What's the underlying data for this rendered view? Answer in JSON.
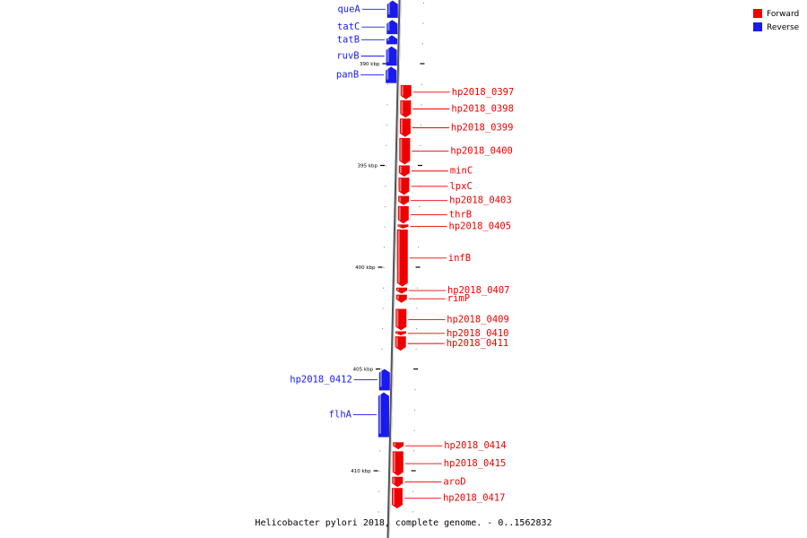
{
  "title": "Helicobacter pylori 2018, complete genome. - 0..1562832",
  "colors": {
    "forward": "#ee0000",
    "reverse": "#1a1aee",
    "axis": "#888888"
  },
  "legend": [
    {
      "label": "Forward",
      "color": "#ee0000"
    },
    {
      "label": "Reverse",
      "color": "#1a1aee"
    }
  ],
  "ticks": [
    {
      "kbp": 390,
      "label": "390 kbp"
    },
    {
      "kbp": 395,
      "label": "395 kbp"
    },
    {
      "kbp": 400,
      "label": "400 kbp"
    },
    {
      "kbp": 405,
      "label": "405 kbp"
    },
    {
      "kbp": 410,
      "label": "410 kbp"
    }
  ],
  "genes": [
    {
      "name": "queA",
      "strand": "reverse",
      "start": 386.9,
      "end": 387.75
    },
    {
      "name": "tatC",
      "strand": "reverse",
      "start": 387.85,
      "end": 388.55
    },
    {
      "name": "tatB",
      "strand": "reverse",
      "start": 388.6,
      "end": 389.05
    },
    {
      "name": "ruvB",
      "strand": "reverse",
      "start": 389.15,
      "end": 390.1
    },
    {
      "name": "panB",
      "strand": "reverse",
      "start": 390.15,
      "end": 390.95
    },
    {
      "name": "hp2018_0397",
      "strand": "forward",
      "start": 391.05,
      "end": 391.75
    },
    {
      "name": "hp2018_0398",
      "strand": "forward",
      "start": 391.8,
      "end": 392.65
    },
    {
      "name": "hp2018_0399",
      "strand": "forward",
      "start": 392.7,
      "end": 393.6
    },
    {
      "name": "hp2018_0400",
      "strand": "forward",
      "start": 393.65,
      "end": 394.95
    },
    {
      "name": "minC",
      "strand": "forward",
      "start": 395.0,
      "end": 395.55
    },
    {
      "name": "lpxC",
      "strand": "forward",
      "start": 395.6,
      "end": 396.45
    },
    {
      "name": "hp2018_0403",
      "strand": "forward",
      "start": 396.5,
      "end": 396.95
    },
    {
      "name": "thrB",
      "strand": "forward",
      "start": 397.0,
      "end": 397.85
    },
    {
      "name": "hp2018_0405",
      "strand": "forward",
      "start": 397.9,
      "end": 398.1
    },
    {
      "name": "infB",
      "strand": "forward",
      "start": 398.15,
      "end": 400.95
    },
    {
      "name": "hp2018_0407",
      "strand": "forward",
      "start": 401.0,
      "end": 401.3
    },
    {
      "name": "rimP",
      "strand": "forward",
      "start": 401.35,
      "end": 401.75
    },
    {
      "name": "hp2018_0409",
      "strand": "forward",
      "start": 402.05,
      "end": 403.1
    },
    {
      "name": "hp2018_0410",
      "strand": "forward",
      "start": 403.15,
      "end": 403.35
    },
    {
      "name": "hp2018_0411",
      "strand": "forward",
      "start": 403.4,
      "end": 404.1
    },
    {
      "name": "hp2018_0412",
      "strand": "reverse",
      "start": 405.0,
      "end": 406.05
    },
    {
      "name": "flhA",
      "strand": "reverse",
      "start": 406.15,
      "end": 408.35
    },
    {
      "name": "hp2018_0414",
      "strand": "forward",
      "start": 408.6,
      "end": 408.95
    },
    {
      "name": "hp2018_0415",
      "strand": "forward",
      "start": 409.05,
      "end": 410.25
    },
    {
      "name": "aroD",
      "strand": "forward",
      "start": 410.3,
      "end": 410.8
    },
    {
      "name": "hp2018_0417",
      "strand": "forward",
      "start": 410.85,
      "end": 411.85
    }
  ]
}
